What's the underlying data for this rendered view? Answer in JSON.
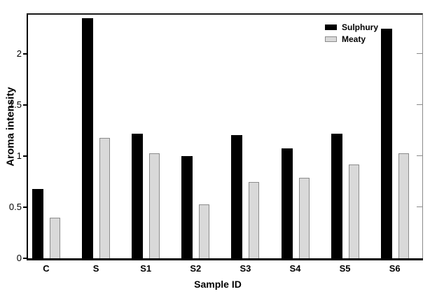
{
  "chart_data": {
    "type": "bar",
    "title": "",
    "categories": [
      "C",
      "S",
      "S1",
      "S2",
      "S3",
      "S4",
      "S5",
      "S6"
    ],
    "series": [
      {
        "name": "Sulphury",
        "color": "#000000",
        "border_color": "#000000",
        "values": [
          0.68,
          2.35,
          1.22,
          1.0,
          1.21,
          1.08,
          1.22,
          2.25
        ]
      },
      {
        "name": "Meaty",
        "color": "#d9d9d9",
        "border_color": "#8c8c8c",
        "values": [
          0.4,
          1.18,
          1.03,
          0.53,
          0.75,
          0.79,
          0.92,
          1.03
        ]
      }
    ],
    "xlabel": "Sample ID",
    "ylabel": "Aroma intensity",
    "ylim": [
      0,
      2.4
    ],
    "yticks": [
      0,
      0.5,
      1,
      1.5,
      2
    ],
    "ytick_labels": [
      "0",
      "0.5",
      "1",
      "1.5",
      "2"
    ],
    "grid": false,
    "legend_position": "top-right",
    "background_color": "#ffffff",
    "text_color": "#000000"
  }
}
